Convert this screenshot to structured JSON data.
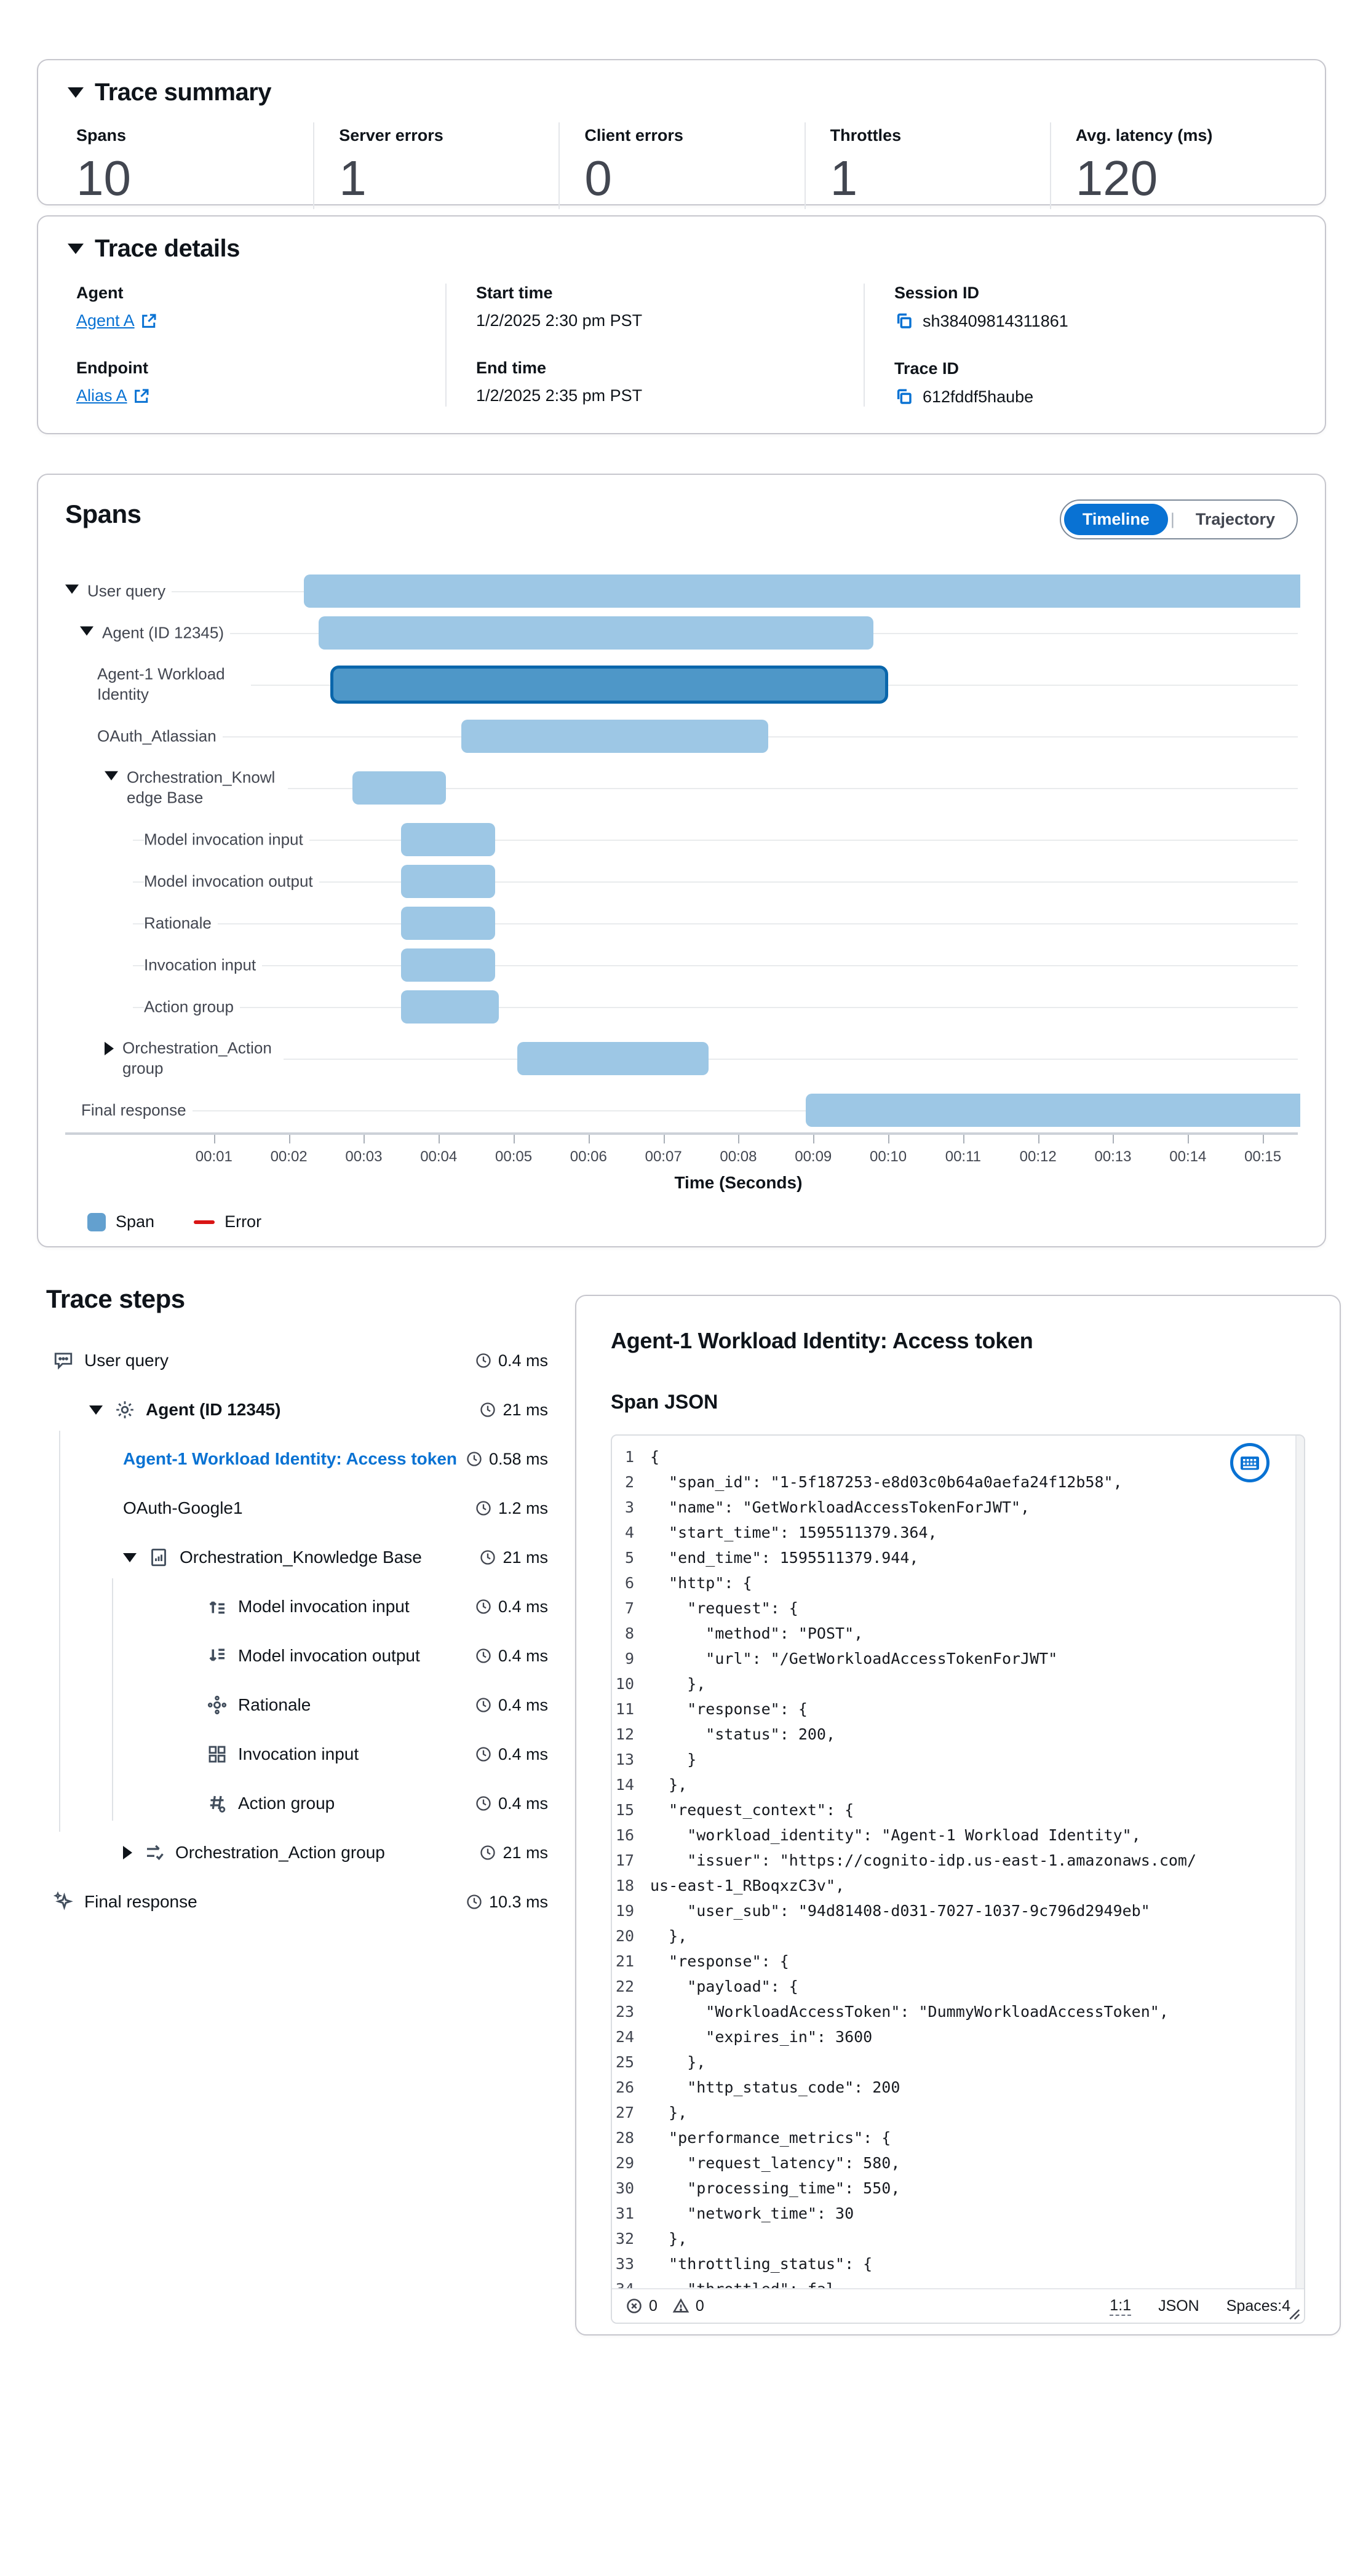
{
  "trace_summary": {
    "title": "Trace summary",
    "metrics": [
      {
        "label": "Spans",
        "value": "10"
      },
      {
        "label": "Server errors",
        "value": "1"
      },
      {
        "label": "Client errors",
        "value": "0"
      },
      {
        "label": "Throttles",
        "value": "1"
      },
      {
        "label": "Avg. latency (ms)",
        "value": "120"
      }
    ]
  },
  "trace_details": {
    "title": "Trace details",
    "agent_label": "Agent",
    "agent_link": "Agent A",
    "endpoint_label": "Endpoint",
    "endpoint_link": "Alias A",
    "start_time_label": "Start time",
    "start_time_value": "1/2/2025 2:30 pm PST",
    "end_time_label": "End time",
    "end_time_value": "1/2/2025 2:35 pm PST",
    "session_id_label": "Session ID",
    "session_id_value": "sh38409814311861",
    "trace_id_label": "Trace ID",
    "trace_id_value": "612fddf5haube"
  },
  "spans": {
    "title": "Spans",
    "toggle": {
      "options": [
        "Timeline",
        "Trajectory"
      ],
      "selected": "Timeline"
    },
    "legend": [
      {
        "label": "Span",
        "shape": "square",
        "color": "#63a0cf"
      },
      {
        "label": "Error",
        "shape": "dash",
        "color": "#d91515"
      }
    ],
    "chart_data": {
      "type": "gantt",
      "xlabel": "Time (Seconds)",
      "x_range_seconds": [
        0,
        15.5
      ],
      "tick_seconds": [
        1,
        2,
        3,
        4,
        5,
        6,
        7,
        8,
        9,
        10,
        11,
        12,
        13,
        14,
        15
      ],
      "tick_labels": [
        "00:01",
        "00:02",
        "00:03",
        "00:04",
        "00:05",
        "00:06",
        "00:07",
        "00:08",
        "00:09",
        "00:10",
        "00:11",
        "00:12",
        "00:13",
        "00:14",
        "00:15"
      ],
      "bar_color": "#9dc7e5",
      "selected_bar_color": "#4e97c8",
      "selected_bar_border": "#0a66ab",
      "rows": [
        {
          "name": "User query",
          "level": 0,
          "caret": "down",
          "start": 2.2,
          "end": 15.5,
          "clipped_right": true
        },
        {
          "name": "Agent (ID 12345)",
          "level": 1,
          "caret": "down",
          "start": 2.4,
          "end": 9.8
        },
        {
          "name": "Agent-1 Workload Identity",
          "level": 2,
          "start": 2.55,
          "end": 10.0,
          "selected": true,
          "two_line": true
        },
        {
          "name": "OAuth_Atlassian",
          "level": 2,
          "start": 4.3,
          "end": 8.4
        },
        {
          "name": "Orchestration_Knowledge Base",
          "level": 2,
          "caret": "down",
          "start": 2.85,
          "end": 4.1,
          "two_line": true
        },
        {
          "name": "Model invocation input",
          "level": 3,
          "start": 3.5,
          "end": 4.75
        },
        {
          "name": "Model invocation output",
          "level": 3,
          "start": 3.5,
          "end": 4.75
        },
        {
          "name": "Rationale",
          "level": 3,
          "start": 3.5,
          "end": 4.75
        },
        {
          "name": "Invocation input",
          "level": 3,
          "start": 3.5,
          "end": 4.75
        },
        {
          "name": "Action group",
          "level": 3,
          "start": 3.5,
          "end": 4.8
        },
        {
          "name": "Orchestration_Action group",
          "level": 2,
          "caret": "right",
          "start": 5.05,
          "end": 7.6,
          "two_line": true
        },
        {
          "name": "Final response",
          "level": 0,
          "start": 8.9,
          "end": 15.5,
          "clipped_right": true
        }
      ]
    }
  },
  "trace_steps": {
    "title": "Trace steps",
    "items": [
      {
        "label": "User query",
        "duration": "0.4 ms",
        "level": 0,
        "icon": "chat"
      },
      {
        "label": "Agent (ID 12345)",
        "duration": "21 ms",
        "level": 1,
        "caret": "down",
        "icon": "gear",
        "bold": true
      },
      {
        "label": "Agent-1 Workload Identity: Access token",
        "duration": "0.58 ms",
        "level": 2,
        "selected": true
      },
      {
        "label": "OAuth-Google1",
        "duration": "1.2 ms",
        "level": 2
      },
      {
        "label": "Orchestration_Knowledge Base",
        "duration": "21 ms",
        "level": 2,
        "caret": "down",
        "icon": "doc-chart"
      },
      {
        "label": "Model invocation input",
        "duration": "0.4 ms",
        "level": 3,
        "icon": "arrow-up-lines"
      },
      {
        "label": "Model invocation output",
        "duration": "0.4 ms",
        "level": 3,
        "icon": "arrow-down-lines"
      },
      {
        "label": "Rationale",
        "duration": "0.4 ms",
        "level": 3,
        "icon": "rationale"
      },
      {
        "label": "Invocation input",
        "duration": "0.4 ms",
        "level": 3,
        "icon": "grid"
      },
      {
        "label": "Action group",
        "duration": "0.4 ms",
        "level": 3,
        "icon": "hash-link"
      },
      {
        "label": "Orchestration_Action group",
        "duration": "21 ms",
        "level": 2,
        "caret": "right",
        "icon": "swap-arrows"
      },
      {
        "label": "Final response",
        "duration": "10.3 ms",
        "level": 0,
        "icon": "sparkle"
      }
    ]
  },
  "span_panel": {
    "title": "Agent-1 Workload Identity: Access token",
    "subtitle": "Span JSON",
    "code_lines": [
      "{",
      "  \"span_id\": \"1-5f187253-e8d03c0b64a0aefa24f12b58\",",
      "  \"name\": \"GetWorkloadAccessTokenForJWT\",",
      "  \"start_time\": 1595511379.364,",
      "  \"end_time\": 1595511379.944,",
      "  \"http\": {",
      "    \"request\": {",
      "      \"method\": \"POST\",",
      "      \"url\": \"/GetWorkloadAccessTokenForJWT\"",
      "    },",
      "    \"response\": {",
      "      \"status\": 200,",
      "    }",
      "  },",
      "  \"request_context\": {",
      "    \"workload_identity\": \"Agent-1 Workload Identity\",",
      "    \"issuer\": \"https://cognito-idp.us-east-1.amazonaws.com/",
      "us-east-1_RBoqxzC3v\",",
      "    \"user_sub\": \"94d81408-d031-7027-1037-9c796d2949eb\"",
      "  },",
      "  \"response\": {",
      "    \"payload\": {",
      "      \"WorkloadAccessToken\": \"DummyWorkloadAccessToken\",",
      "      \"expires_in\": 3600",
      "    },",
      "    \"http_status_code\": 200",
      "  },",
      "  \"performance_metrics\": {",
      "    \"request_latency\": 580,",
      "    \"processing_time\": 550,",
      "    \"network_time\": 30",
      "  },",
      "  \"throttling_status\": {",
      "    \"throttled\": fal"
    ],
    "status_bar": {
      "error_count": "0",
      "warning_count": "0",
      "cursor": "1:1",
      "language": "JSON",
      "spaces": "Spaces:4"
    }
  }
}
